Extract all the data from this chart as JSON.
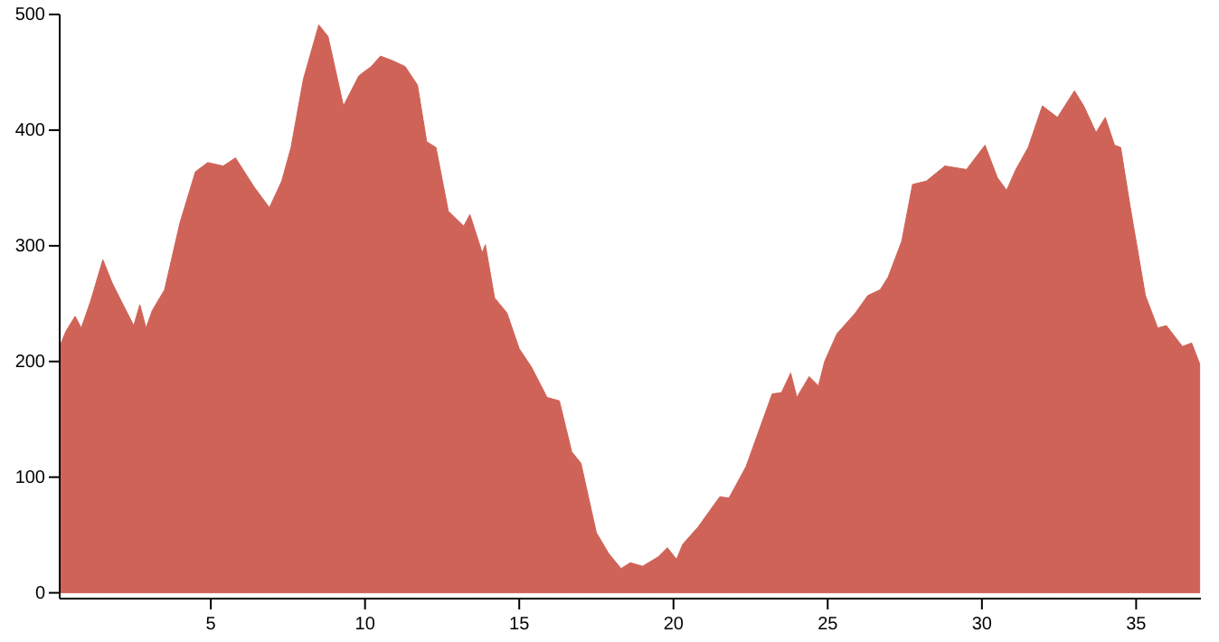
{
  "chart_data": {
    "type": "area",
    "xlim": [
      0.1,
      37.1
    ],
    "ylim": [
      -5,
      500
    ],
    "xticks": [
      5,
      10,
      15,
      20,
      25,
      30,
      35
    ],
    "yticks": [
      0,
      100,
      200,
      300,
      400,
      500
    ],
    "grid": false,
    "series": [
      {
        "color": "#cf6358",
        "x": [
          0.1,
          0.3,
          0.6,
          0.8,
          1.1,
          1.5,
          1.8,
          2.1,
          2.5,
          2.7,
          2.9,
          3.1,
          3.5,
          4.0,
          4.5,
          4.9,
          5.4,
          5.8,
          6.4,
          6.9,
          7.3,
          7.6,
          8.0,
          8.5,
          8.8,
          9.3,
          9.8,
          10.2,
          10.5,
          10.9,
          11.3,
          11.7,
          12.0,
          12.3,
          12.7,
          13.2,
          13.4,
          13.8,
          13.9,
          14.2,
          14.6,
          15.0,
          15.4,
          15.9,
          16.3,
          16.7,
          17.0,
          17.5,
          17.9,
          18.3,
          18.6,
          19.0,
          19.5,
          19.8,
          20.1,
          20.3,
          20.8,
          21.5,
          21.8,
          22.35,
          22.85,
          23.2,
          23.5,
          23.8,
          24.0,
          24.4,
          24.7,
          24.9,
          25.3,
          25.9,
          26.3,
          26.7,
          26.96,
          27.4,
          27.75,
          28.2,
          28.8,
          29.5,
          30.1,
          30.5,
          30.8,
          31.1,
          31.5,
          31.96,
          32.45,
          33.0,
          33.3,
          33.7,
          34.0,
          34.3,
          34.5,
          34.8,
          35.3,
          35.7,
          35.98,
          36.5,
          36.8,
          37.06
        ],
        "values": [
          213,
          226,
          239,
          229,
          252,
          288,
          268,
          252,
          231,
          249,
          229,
          244,
          262,
          320,
          364,
          372,
          369,
          376,
          351,
          333,
          356,
          385,
          444,
          491,
          481,
          421,
          447,
          455,
          464,
          460,
          455,
          439,
          390,
          385,
          330,
          317,
          327,
          294,
          301,
          255,
          242,
          211,
          195,
          169,
          166,
          122,
          112,
          52,
          34,
          21,
          26,
          23,
          31,
          39,
          29,
          42,
          57,
          83,
          82,
          109,
          146,
          172,
          173,
          190,
          169,
          187,
          179,
          200,
          224,
          242,
          257,
          262,
          273,
          304,
          353,
          356,
          369,
          366,
          387,
          359,
          348,
          366,
          385,
          421,
          411,
          434,
          421,
          398,
          411,
          387,
          385,
          335,
          257,
          229,
          231,
          213,
          216,
          198
        ]
      }
    ]
  }
}
